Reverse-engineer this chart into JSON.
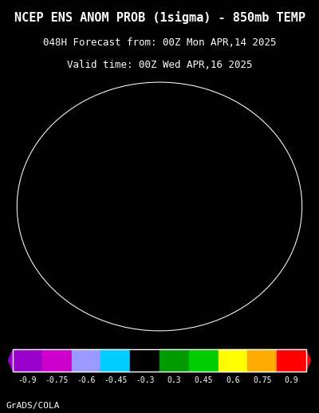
{
  "title_line1": "NCEP ENS ANOM PROB (1sigma) - 850mb TEMP",
  "title_line2": "048H Forecast from: 00Z Mon APR,14 2025",
  "title_line3": "Valid time: 00Z Wed APR,16 2025",
  "credit": "GrADS/COLA",
  "colorbar_values": [
    -0.9,
    -0.75,
    -0.6,
    -0.45,
    -0.3,
    0.3,
    0.45,
    0.6,
    0.75,
    0.9
  ],
  "colorbar_labels": [
    "-0.9",
    "-0.75",
    "-0.6",
    "-0.45",
    "-0.3",
    "0.3",
    "0.45",
    "0.6",
    "0.75",
    "0.9"
  ],
  "colorbar_colors": [
    "#9900cc",
    "#cc00cc",
    "#9999ff",
    "#00ccff",
    "#000000",
    "#009900",
    "#00cc00",
    "#ffff00",
    "#ffaa00",
    "#ff0000"
  ],
  "background_color": "#000000",
  "map_border_color": "#ffffff",
  "title_color": "#ffffff",
  "title_fontsize": 11,
  "subtitle_fontsize": 9,
  "credit_fontsize": 8
}
